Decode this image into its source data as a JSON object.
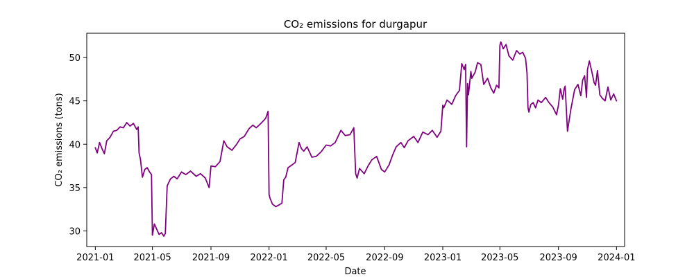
{
  "chart_data": {
    "type": "line",
    "title": "CO₂ emissions for durgapur",
    "xlabel": "Date",
    "ylabel": "CO₂ emissions (tons)",
    "x_ticks": [
      "2021-01",
      "2021-05",
      "2021-09",
      "2022-01",
      "2022-05",
      "2022-09",
      "2023-01",
      "2023-05",
      "2023-09",
      "2024-01"
    ],
    "y_ticks": [
      30,
      35,
      40,
      45,
      50
    ],
    "xlim": [
      "2020-12-14",
      "2024-01-18"
    ],
    "ylim": [
      28.2,
      52.8
    ],
    "grid": false,
    "series": [
      {
        "color": "#800080",
        "x": [
          "2021-01-01",
          "2021-01-05",
          "2021-01-10",
          "2021-01-15",
          "2021-01-20",
          "2021-01-25",
          "2021-02-01",
          "2021-02-08",
          "2021-02-15",
          "2021-02-22",
          "2021-03-01",
          "2021-03-08",
          "2021-03-15",
          "2021-03-22",
          "2021-03-29",
          "2021-04-01",
          "2021-04-03",
          "2021-04-06",
          "2021-04-10",
          "2021-04-15",
          "2021-04-20",
          "2021-04-25",
          "2021-04-29",
          "2021-05-01",
          "2021-05-05",
          "2021-05-10",
          "2021-05-15",
          "2021-05-20",
          "2021-05-25",
          "2021-05-28",
          "2021-06-01",
          "2021-06-08",
          "2021-06-15",
          "2021-06-22",
          "2021-07-01",
          "2021-07-10",
          "2021-07-20",
          "2021-08-01",
          "2021-08-10",
          "2021-08-20",
          "2021-08-28",
          "2021-09-01",
          "2021-09-10",
          "2021-09-20",
          "2021-09-28",
          "2021-10-05",
          "2021-10-15",
          "2021-10-25",
          "2021-11-01",
          "2021-11-10",
          "2021-11-20",
          "2021-11-28",
          "2021-12-05",
          "2021-12-15",
          "2021-12-25",
          "2021-12-30",
          "2022-01-01",
          "2022-01-03",
          "2022-01-08",
          "2022-01-15",
          "2022-01-22",
          "2022-01-28",
          "2022-02-01",
          "2022-02-05",
          "2022-02-10",
          "2022-02-18",
          "2022-02-25",
          "2022-03-05",
          "2022-03-10",
          "2022-03-15",
          "2022-03-22",
          "2022-04-01",
          "2022-04-10",
          "2022-04-20",
          "2022-05-01",
          "2022-05-10",
          "2022-05-20",
          "2022-06-01",
          "2022-06-10",
          "2022-06-20",
          "2022-06-28",
          "2022-07-02",
          "2022-07-05",
          "2022-07-10",
          "2022-07-20",
          "2022-07-28",
          "2022-08-05",
          "2022-08-15",
          "2022-08-25",
          "2022-09-01",
          "2022-09-10",
          "2022-09-18",
          "2022-09-25",
          "2022-10-05",
          "2022-10-12",
          "2022-10-20",
          "2022-11-01",
          "2022-11-10",
          "2022-11-20",
          "2022-12-01",
          "2022-12-10",
          "2022-12-20",
          "2022-12-28",
          "2023-01-01",
          "2023-01-03",
          "2023-01-10",
          "2023-01-20",
          "2023-01-28",
          "2023-02-05",
          "2023-02-10",
          "2023-02-15",
          "2023-02-18",
          "2023-02-20",
          "2023-02-22",
          "2023-02-24",
          "2023-03-01",
          "2023-03-03",
          "2023-03-10",
          "2023-03-15",
          "2023-03-22",
          "2023-03-28",
          "2023-04-05",
          "2023-04-12",
          "2023-04-18",
          "2023-04-24",
          "2023-04-29",
          "2023-05-01",
          "2023-05-03",
          "2023-05-08",
          "2023-05-14",
          "2023-05-20",
          "2023-05-28",
          "2023-06-05",
          "2023-06-12",
          "2023-06-18",
          "2023-06-24",
          "2023-06-27",
          "2023-06-29",
          "2023-07-01",
          "2023-07-05",
          "2023-07-10",
          "2023-07-15",
          "2023-07-20",
          "2023-07-27",
          "2023-08-05",
          "2023-08-12",
          "2023-08-20",
          "2023-08-28",
          "2023-09-01",
          "2023-09-05",
          "2023-09-10",
          "2023-09-13",
          "2023-09-15",
          "2023-09-20",
          "2023-09-27",
          "2023-10-05",
          "2023-10-12",
          "2023-10-18",
          "2023-10-22",
          "2023-10-26",
          "2023-10-30",
          "2023-11-01",
          "2023-11-05",
          "2023-11-10",
          "2023-11-15",
          "2023-11-18",
          "2023-11-22",
          "2023-11-27",
          "2023-12-02",
          "2023-12-08",
          "2023-12-14",
          "2023-12-20",
          "2023-12-26",
          "2024-01-01"
        ],
        "y": [
          39.6,
          39.0,
          40.2,
          39.5,
          38.9,
          40.4,
          40.8,
          41.5,
          41.6,
          42.0,
          41.9,
          42.5,
          42.1,
          42.4,
          41.7,
          42.0,
          39.0,
          38.2,
          36.2,
          37.1,
          37.3,
          36.8,
          36.5,
          29.5,
          30.8,
          30.2,
          29.6,
          29.8,
          29.4,
          29.7,
          35.2,
          36.0,
          36.3,
          36.0,
          36.8,
          36.5,
          36.9,
          36.3,
          36.6,
          36.1,
          35.0,
          37.5,
          37.4,
          38.0,
          40.4,
          39.7,
          39.3,
          40.0,
          40.6,
          40.9,
          41.8,
          42.2,
          41.9,
          42.4,
          43.0,
          43.8,
          34.2,
          33.8,
          33.1,
          32.8,
          33.0,
          33.2,
          35.9,
          36.2,
          37.3,
          37.6,
          37.9,
          40.2,
          39.5,
          39.2,
          39.7,
          38.5,
          38.6,
          39.1,
          39.9,
          39.8,
          40.2,
          41.6,
          41.0,
          41.1,
          41.9,
          36.6,
          36.1,
          37.2,
          36.6,
          37.5,
          38.2,
          38.6,
          37.1,
          36.8,
          37.6,
          38.8,
          39.7,
          40.2,
          39.6,
          40.4,
          40.9,
          40.2,
          41.4,
          41.1,
          41.6,
          40.8,
          41.5,
          44.5,
          44.2,
          45.1,
          44.6,
          45.6,
          46.2,
          49.3,
          48.6,
          49.2,
          39.7,
          47.0,
          45.7,
          48.4,
          47.6,
          48.3,
          49.4,
          49.2,
          46.9,
          47.6,
          46.5,
          45.9,
          46.8,
          46.5,
          51.4,
          51.8,
          51.0,
          51.5,
          50.2,
          49.7,
          50.8,
          50.4,
          50.6,
          49.9,
          48.2,
          44.2,
          43.7,
          44.6,
          44.8,
          44.2,
          45.1,
          44.8,
          45.4,
          44.8,
          44.3,
          43.4,
          44.5,
          46.4,
          45.2,
          46.4,
          46.7,
          41.5,
          44.0,
          46.3,
          46.9,
          45.6,
          47.4,
          47.9,
          45.4,
          48.6,
          49.6,
          48.4,
          47.1,
          46.8,
          48.5,
          45.7,
          45.3,
          45.0,
          46.6,
          45.1,
          45.8,
          45.0
        ]
      }
    ]
  }
}
